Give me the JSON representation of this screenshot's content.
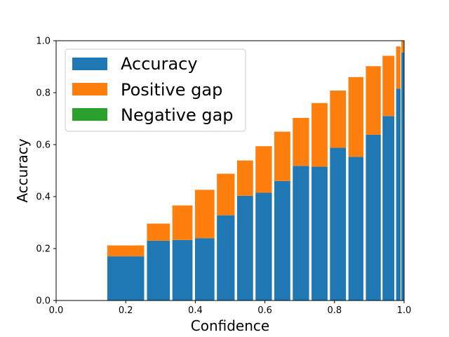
{
  "chart_data": {
    "type": "bar",
    "title": "",
    "xlabel": "Confidence",
    "ylabel": "Accuracy",
    "xlim": [
      0.0,
      1.0
    ],
    "ylim": [
      0.0,
      1.0
    ],
    "xticks": [
      "0.0",
      "0.2",
      "0.4",
      "0.6",
      "0.8",
      "1.0"
    ],
    "yticks": [
      "0.0",
      "0.2",
      "0.4",
      "0.6",
      "0.8",
      "1.0"
    ],
    "grid": false,
    "legend_position": "top-left",
    "legend": [
      "Accuracy",
      "Positive gap",
      "Negative gap"
    ],
    "colors": {
      "accuracy": "#1f77b4",
      "positive_gap": "#ff7f0e",
      "negative_gap": "#2ca02c"
    },
    "bins": [
      {
        "left": 0.147,
        "right": 0.253,
        "accuracy": 0.17,
        "confidence": 0.212
      },
      {
        "left": 0.261,
        "right": 0.327,
        "accuracy": 0.23,
        "confidence": 0.296
      },
      {
        "left": 0.334,
        "right": 0.392,
        "accuracy": 0.233,
        "confidence": 0.366
      },
      {
        "left": 0.399,
        "right": 0.455,
        "accuracy": 0.24,
        "confidence": 0.426
      },
      {
        "left": 0.462,
        "right": 0.513,
        "accuracy": 0.328,
        "confidence": 0.488
      },
      {
        "left": 0.52,
        "right": 0.566,
        "accuracy": 0.403,
        "confidence": 0.539
      },
      {
        "left": 0.573,
        "right": 0.62,
        "accuracy": 0.415,
        "confidence": 0.594
      },
      {
        "left": 0.627,
        "right": 0.673,
        "accuracy": 0.46,
        "confidence": 0.65
      },
      {
        "left": 0.68,
        "right": 0.727,
        "accuracy": 0.518,
        "confidence": 0.703
      },
      {
        "left": 0.734,
        "right": 0.78,
        "accuracy": 0.515,
        "confidence": 0.76
      },
      {
        "left": 0.787,
        "right": 0.833,
        "accuracy": 0.588,
        "confidence": 0.808
      },
      {
        "left": 0.84,
        "right": 0.883,
        "accuracy": 0.553,
        "confidence": 0.86
      },
      {
        "left": 0.89,
        "right": 0.933,
        "accuracy": 0.638,
        "confidence": 0.902
      },
      {
        "left": 0.938,
        "right": 0.972,
        "accuracy": 0.71,
        "confidence": 0.942
      },
      {
        "left": 0.977,
        "right": 0.99,
        "accuracy": 0.815,
        "confidence": 0.978
      },
      {
        "left": 0.992,
        "right": 1.0,
        "accuracy": 0.955,
        "confidence": 1.0
      }
    ]
  }
}
